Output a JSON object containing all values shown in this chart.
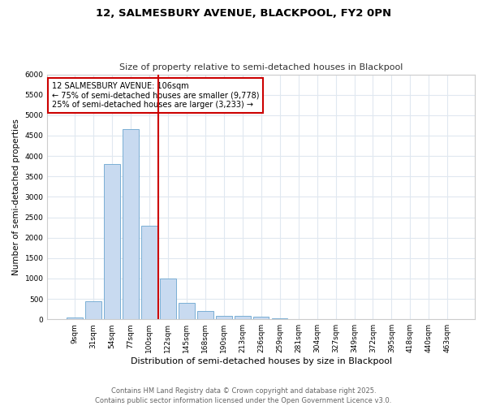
{
  "title1": "12, SALMESBURY AVENUE, BLACKPOOL, FY2 0PN",
  "title2": "Size of property relative to semi-detached houses in Blackpool",
  "xlabel": "Distribution of semi-detached houses by size in Blackpool",
  "ylabel": "Number of semi-detached properties",
  "categories": [
    "9sqm",
    "31sqm",
    "54sqm",
    "77sqm",
    "100sqm",
    "122sqm",
    "145sqm",
    "168sqm",
    "190sqm",
    "213sqm",
    "236sqm",
    "259sqm",
    "281sqm",
    "304sqm",
    "327sqm",
    "349sqm",
    "372sqm",
    "395sqm",
    "418sqm",
    "440sqm",
    "463sqm"
  ],
  "values": [
    50,
    450,
    3800,
    4650,
    2300,
    1000,
    400,
    200,
    90,
    75,
    55,
    30,
    0,
    0,
    0,
    0,
    0,
    0,
    0,
    0,
    0
  ],
  "bar_color": "#c8daf0",
  "bar_edge_color": "#7aafd4",
  "vline_x_index": 4.5,
  "vline_color": "#cc0000",
  "annotation_text": "12 SALMESBURY AVENUE: 106sqm\n← 75% of semi-detached houses are smaller (9,778)\n25% of semi-detached houses are larger (3,233) →",
  "annotation_box_color": "#ffffff",
  "annotation_box_edge": "#cc0000",
  "ylim": [
    0,
    6000
  ],
  "yticks": [
    0,
    500,
    1000,
    1500,
    2000,
    2500,
    3000,
    3500,
    4000,
    4500,
    5000,
    5500,
    6000
  ],
  "footer1": "Contains HM Land Registry data © Crown copyright and database right 2025.",
  "footer2": "Contains public sector information licensed under the Open Government Licence v3.0.",
  "bg_color": "#ffffff",
  "plot_bg_color": "#ffffff",
  "grid_color": "#e0e8f0"
}
